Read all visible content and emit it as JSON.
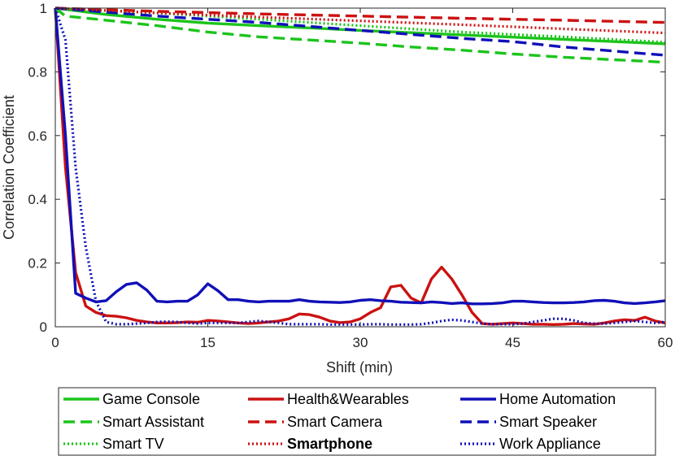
{
  "chart_data": {
    "type": "line",
    "xlabel": "Shift (min)",
    "ylabel": "Correlation Coefficient",
    "xlim": [
      0,
      60
    ],
    "ylim": [
      0,
      1
    ],
    "xticks": [
      0,
      15,
      30,
      45,
      60
    ],
    "yticks": [
      0,
      0.2,
      0.4,
      0.6,
      0.8,
      1
    ],
    "ytick_labels": [
      "0",
      "0.2",
      "0.4",
      "0.6",
      "0.8",
      "1"
    ],
    "grid": false,
    "legend_position": "bottom",
    "highlight_color": "#e8171b",
    "series": [
      {
        "name": "Game Console",
        "color": "#1cc41c",
        "style": "solid",
        "x": [
          0,
          5,
          10,
          15,
          20,
          25,
          30,
          35,
          40,
          45,
          50,
          55,
          60
        ],
        "y": [
          1.0,
          0.98,
          0.965,
          0.953,
          0.945,
          0.938,
          0.93,
          0.923,
          0.916,
          0.909,
          0.902,
          0.895,
          0.888
        ]
      },
      {
        "name": "Health&Wearables",
        "color": "#cc1111",
        "style": "solid",
        "x": [
          0,
          1,
          2,
          3,
          4,
          5,
          6,
          7,
          8,
          9,
          10,
          11,
          12,
          13,
          14,
          15,
          16,
          17,
          18,
          19,
          20,
          21,
          22,
          23,
          24,
          25,
          26,
          27,
          28,
          29,
          30,
          31,
          32,
          33,
          34,
          35,
          36,
          37,
          38,
          39,
          40,
          41,
          42,
          43,
          44,
          45,
          46,
          47,
          48,
          49,
          50,
          51,
          52,
          53,
          54,
          55,
          56,
          57,
          58,
          59,
          60
        ],
        "y": [
          1.0,
          0.5,
          0.17,
          0.065,
          0.045,
          0.035,
          0.033,
          0.028,
          0.02,
          0.015,
          0.012,
          0.012,
          0.013,
          0.015,
          0.014,
          0.02,
          0.018,
          0.015,
          0.012,
          0.01,
          0.012,
          0.015,
          0.018,
          0.025,
          0.04,
          0.038,
          0.03,
          0.018,
          0.013,
          0.015,
          0.025,
          0.045,
          0.06,
          0.125,
          0.13,
          0.09,
          0.075,
          0.15,
          0.187,
          0.15,
          0.1,
          0.045,
          0.01,
          0.008,
          0.01,
          0.012,
          0.01,
          0.008,
          0.008,
          0.007,
          0.008,
          0.01,
          0.009,
          0.008,
          0.012,
          0.018,
          0.022,
          0.02,
          0.03,
          0.018,
          0.012
        ]
      },
      {
        "name": "Home Automation",
        "color": "#1010b8",
        "style": "solid",
        "x": [
          0,
          1,
          2,
          3,
          4,
          5,
          6,
          7,
          8,
          9,
          10,
          11,
          12,
          13,
          14,
          15,
          16,
          17,
          18,
          19,
          20,
          21,
          22,
          23,
          24,
          25,
          26,
          27,
          28,
          29,
          30,
          31,
          32,
          33,
          34,
          35,
          36,
          37,
          38,
          39,
          40,
          41,
          42,
          43,
          44,
          45,
          46,
          47,
          48,
          49,
          50,
          51,
          52,
          53,
          54,
          55,
          56,
          57,
          58,
          59,
          60
        ],
        "y": [
          1.0,
          0.6,
          0.105,
          0.09,
          0.078,
          0.082,
          0.11,
          0.133,
          0.138,
          0.115,
          0.08,
          0.078,
          0.08,
          0.08,
          0.1,
          0.135,
          0.113,
          0.085,
          0.085,
          0.08,
          0.078,
          0.08,
          0.08,
          0.08,
          0.085,
          0.08,
          0.078,
          0.077,
          0.076,
          0.078,
          0.083,
          0.085,
          0.082,
          0.08,
          0.077,
          0.076,
          0.075,
          0.078,
          0.076,
          0.073,
          0.075,
          0.072,
          0.072,
          0.073,
          0.075,
          0.08,
          0.08,
          0.078,
          0.076,
          0.075,
          0.075,
          0.076,
          0.078,
          0.082,
          0.083,
          0.08,
          0.075,
          0.073,
          0.075,
          0.078,
          0.082
        ]
      },
      {
        "name": "Smart Assistant",
        "color": "#1cc41c",
        "style": "dashed",
        "x": [
          0,
          1,
          5,
          10,
          15,
          20,
          25,
          30,
          35,
          40,
          45,
          50,
          55,
          60
        ],
        "y": [
          1.0,
          0.975,
          0.962,
          0.945,
          0.925,
          0.91,
          0.9,
          0.89,
          0.878,
          0.868,
          0.856,
          0.846,
          0.838,
          0.83
        ]
      },
      {
        "name": "Smart Camera",
        "color": "#cc1111",
        "style": "dashed",
        "x": [
          0,
          10,
          20,
          30,
          40,
          50,
          60
        ],
        "y": [
          1.0,
          0.99,
          0.982,
          0.975,
          0.968,
          0.962,
          0.955
        ]
      },
      {
        "name": "Smart Speaker",
        "color": "#1010b8",
        "style": "dashed",
        "x": [
          0,
          10,
          20,
          30,
          40,
          45,
          50,
          55,
          60
        ],
        "y": [
          1.0,
          0.975,
          0.955,
          0.93,
          0.905,
          0.895,
          0.878,
          0.865,
          0.852
        ]
      },
      {
        "name": "Smart TV",
        "color": "#1cc41c",
        "style": "dotted",
        "x": [
          0,
          10,
          20,
          30,
          40,
          50,
          60
        ],
        "y": [
          1.0,
          0.985,
          0.965,
          0.945,
          0.925,
          0.91,
          0.893
        ]
      },
      {
        "name": "Smartphone",
        "color": "#cc1111",
        "style": "dotted",
        "x": [
          0,
          10,
          20,
          30,
          40,
          50,
          60
        ],
        "y": [
          1.0,
          0.985,
          0.972,
          0.96,
          0.948,
          0.935,
          0.922
        ]
      },
      {
        "name": "Work Appliance",
        "color": "#1010b8",
        "style": "dotted",
        "x": [
          0,
          1,
          2,
          3,
          4,
          5,
          6,
          7,
          8,
          9,
          10,
          11,
          12,
          13,
          14,
          15,
          16,
          17,
          18,
          19,
          20,
          21,
          22,
          23,
          24,
          25,
          26,
          27,
          28,
          29,
          30,
          31,
          32,
          33,
          34,
          35,
          36,
          37,
          38,
          39,
          40,
          41,
          42,
          43,
          44,
          45,
          46,
          47,
          48,
          49,
          50,
          51,
          52,
          53,
          54,
          55,
          56,
          57,
          58,
          59,
          60
        ],
        "y": [
          1.0,
          0.9,
          0.5,
          0.25,
          0.08,
          0.015,
          0.008,
          0.008,
          0.01,
          0.012,
          0.015,
          0.016,
          0.015,
          0.012,
          0.01,
          0.012,
          0.012,
          0.012,
          0.012,
          0.015,
          0.018,
          0.015,
          0.012,
          0.008,
          0.008,
          0.008,
          0.008,
          0.007,
          0.007,
          0.007,
          0.007,
          0.008,
          0.008,
          0.007,
          0.007,
          0.007,
          0.008,
          0.012,
          0.018,
          0.022,
          0.02,
          0.015,
          0.01,
          0.008,
          0.008,
          0.008,
          0.01,
          0.015,
          0.02,
          0.025,
          0.025,
          0.02,
          0.012,
          0.01,
          0.01,
          0.012,
          0.015,
          0.018,
          0.015,
          0.012,
          0.015
        ]
      }
    ],
    "legend_highlight": "Smartphone"
  }
}
